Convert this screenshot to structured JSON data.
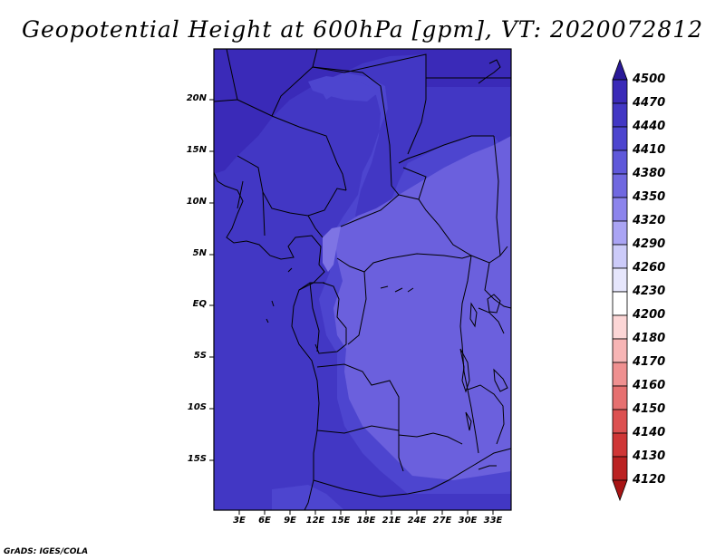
{
  "title": "Geopotential Height at 600hPa [gpm], VT: 2020072812",
  "credit": "GrADS: IGES/COLA",
  "lat_labels": [
    "20N",
    "15N",
    "10N",
    "5N",
    "EQ",
    "5S",
    "10S",
    "15S"
  ],
  "lon_labels": [
    "3E",
    "6E",
    "9E",
    "12E",
    "15E",
    "18E",
    "21E",
    "24E",
    "27E",
    "30E",
    "33E"
  ],
  "colorbar": {
    "labels": [
      "4500",
      "4470",
      "4440",
      "4410",
      "4380",
      "4350",
      "4320",
      "4290",
      "4260",
      "4230",
      "4200",
      "4180",
      "4170",
      "4160",
      "4150",
      "4140",
      "4130",
      "4120"
    ],
    "colors": [
      "#2a1a98",
      "#3a2ab8",
      "#4237c4",
      "#4d45cf",
      "#5f58da",
      "#7068e0",
      "#8c84ec",
      "#aaa4f4",
      "#cccbf9",
      "#e6e6fc",
      "#ffffff",
      "#fcd6d6",
      "#f7b5b5",
      "#ef9090",
      "#e67070",
      "#dc5050",
      "#cf3636",
      "#bb2222",
      "#a81414"
    ]
  },
  "map_colors": {
    "fill_4470": "#3a2ab8",
    "fill_4440": "#4237c4",
    "fill_4410": "#4d45cf",
    "fill_4380": "#6b60dd",
    "fill_4350": "#7e74e4"
  }
}
